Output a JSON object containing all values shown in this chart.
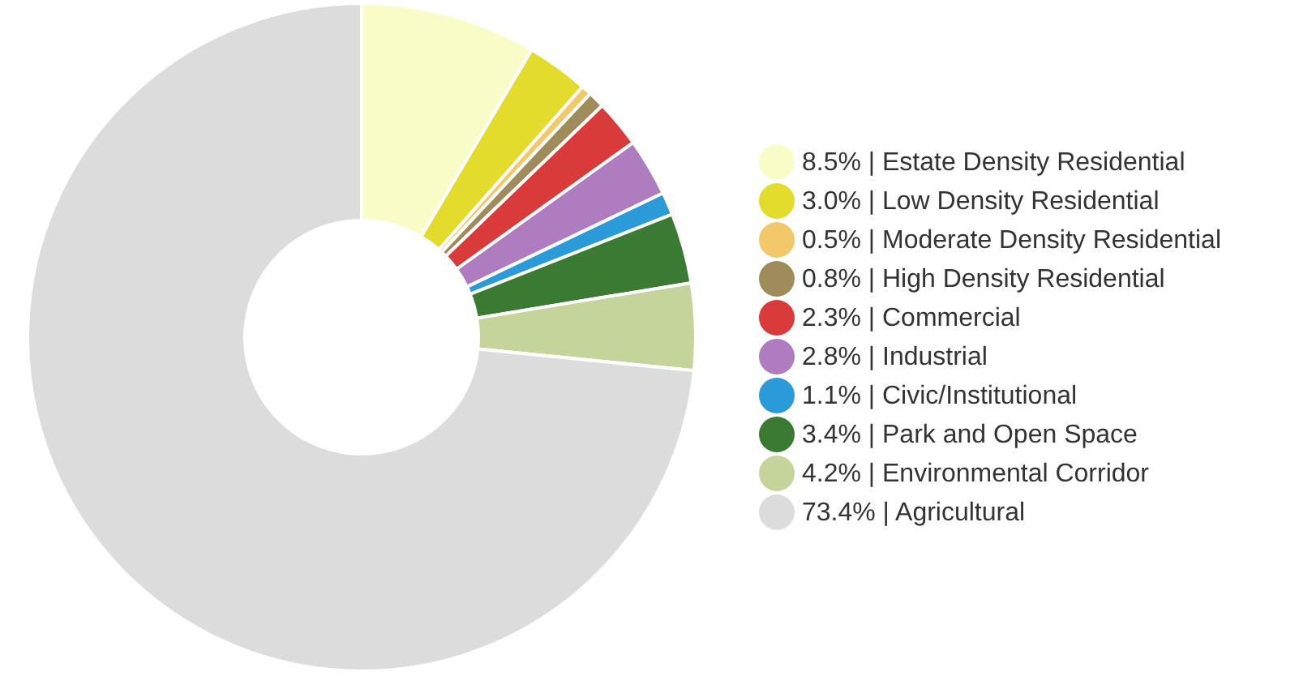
{
  "chart_data": {
    "type": "donut",
    "categories": [
      "8.5%  | Estate Density Residential",
      "3.0%  | Low Density Residential",
      "0.5%  | Moderate Density Residential",
      "0.8%  | High Density Residential",
      "2.3%  | Commercial",
      "2.8%  | Industrial",
      "1.1%  | Civic/Institutional",
      "3.4%  | Park and Open Space",
      "4.2%  | Environmental Corridor",
      "73.4% | Agricultural"
    ],
    "values": [
      8.5,
      3.0,
      0.5,
      0.8,
      2.3,
      2.8,
      1.1,
      3.4,
      4.2,
      73.4
    ],
    "colors": [
      "#fafcc8",
      "#e3dc2c",
      "#f3c86a",
      "#a08c5a",
      "#d93a3a",
      "#b07cc0",
      "#2a9ad8",
      "#3a7a32",
      "#c4d49a",
      "#dcdcdc"
    ],
    "legend": "right"
  }
}
